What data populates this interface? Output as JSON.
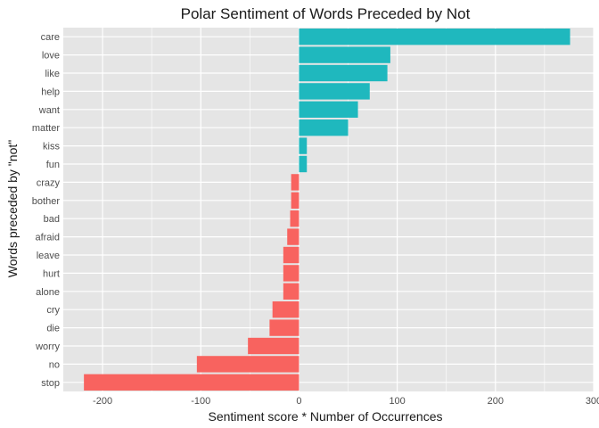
{
  "chart_data": {
    "type": "bar",
    "orientation": "horizontal",
    "title": "Polar Sentiment of Words Preceded by Not",
    "xlabel": "Sentiment score * Number of Occurrences",
    "ylabel": "Words preceded by \"not\"",
    "xlim": [
      -240,
      300
    ],
    "xticks": [
      -200,
      -100,
      0,
      100,
      200,
      300
    ],
    "grid": true,
    "legend": "none",
    "colors": {
      "positive": "#1FB8BE",
      "negative": "#F8635F",
      "panel": "#E5E5E5",
      "grid": "#FFFFFF"
    },
    "categories": [
      "care",
      "love",
      "like",
      "help",
      "want",
      "matter",
      "kiss",
      "fun",
      "crazy",
      "bother",
      "bad",
      "afraid",
      "leave",
      "hurt",
      "alone",
      "cry",
      "die",
      "worry",
      "no",
      "stop"
    ],
    "values": [
      276,
      93,
      90,
      72,
      60,
      50,
      8,
      8,
      -8,
      -8,
      -9,
      -12,
      -16,
      -16,
      -16,
      -27,
      -30,
      -52,
      -104,
      -219
    ]
  }
}
